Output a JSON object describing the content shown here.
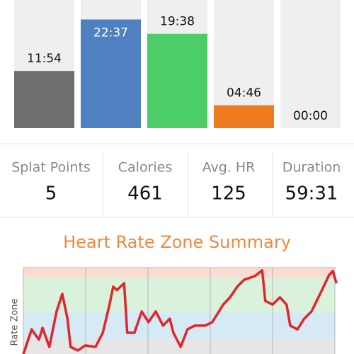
{
  "chart_data": [
    {
      "type": "bar",
      "values": [
        714,
        1357,
        1178,
        286,
        0
      ],
      "value_labels": [
        "11:54",
        "22:37",
        "19:38",
        "04:46",
        "00:00"
      ],
      "colors": [
        "#6d6e70",
        "#4f80bf",
        "#4ccd67",
        "#ee7b1d",
        "#e84a3a"
      ],
      "ylim": [
        0,
        1600
      ]
    },
    {
      "type": "line",
      "title": "Heart Rate Zone Summary",
      "ylabel": "Rate Zone",
      "x": [
        0,
        1.6,
        3.0,
        3.7,
        5.0,
        6.4,
        7.5,
        8.5,
        9.1,
        10.5,
        11.9,
        13.9,
        15.3,
        16.6,
        17.3,
        18.0,
        19.4,
        20.0,
        21.4,
        22.8,
        24.1,
        25.5,
        26.9,
        28.2,
        28.9,
        30.3,
        31.6,
        33.0,
        35.0,
        36.4,
        38.5,
        39.8,
        41.2,
        42.5,
        44.6,
        46.0,
        46.6,
        48.0,
        49.4,
        50.7,
        51.4,
        52.8,
        54.1,
        55.5,
        57.5,
        58.9,
        59.6,
        60.3
      ],
      "series": [
        {
          "color": "#e0262b",
          "values": [
            65.1,
            75.1,
            70.9,
            75.7,
            68.0,
            82.3,
            89.4,
            79.4,
            68.0,
            66.6,
            68.6,
            68.0,
            73.7,
            85.1,
            92.3,
            90.9,
            93.7,
            73.7,
            73.7,
            82.3,
            78.0,
            82.3,
            76.6,
            79.4,
            73.7,
            68.0,
            75.1,
            76.6,
            76.6,
            78.0,
            85.1,
            88.0,
            92.3,
            95.1,
            96.6,
            98.9,
            86.6,
            85.1,
            88.0,
            85.1,
            76.6,
            75.1,
            79.4,
            82.3,
            90.9,
            97.1,
            98.6,
            93.7
          ]
        }
      ],
      "zones": [
        {
          "from": 96,
          "to": 100,
          "color": "#fbdcd2"
        },
        {
          "from": 82,
          "to": 96,
          "color": "#daf2dc"
        },
        {
          "from": 71,
          "to": 82,
          "color": "#d6eaf5"
        },
        {
          "from": 60,
          "to": 71,
          "color": "#e6e6e6"
        }
      ],
      "xgrid": [
        0,
        12,
        24,
        36,
        48,
        60
      ],
      "xlim": [
        0,
        60
      ],
      "ylim": [
        60,
        100
      ]
    }
  ],
  "stats": [
    {
      "label": "Splat Points",
      "value": 5
    },
    {
      "label": "Calories",
      "value": 461
    },
    {
      "label": "Avg. HR",
      "value": 125
    },
    {
      "label": "Duration",
      "value": "59:31"
    }
  ]
}
